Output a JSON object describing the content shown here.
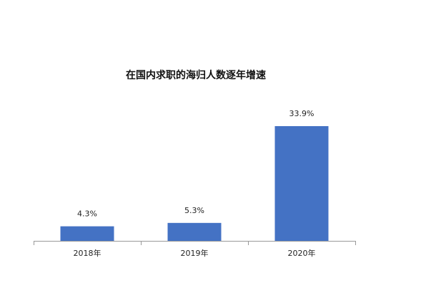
{
  "chart_data": {
    "type": "bar",
    "title": "在国内求职的海归人数逐年增速",
    "categories": [
      "2018年",
      "2019年",
      "2020年"
    ],
    "values": [
      4.3,
      5.3,
      33.9
    ],
    "value_labels": [
      "4.3%",
      "5.3%",
      "33.9%"
    ],
    "color": "#4472c4"
  }
}
